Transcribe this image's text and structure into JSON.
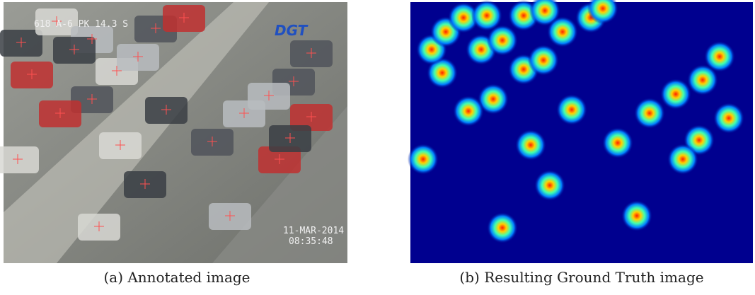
{
  "figure": {
    "left": {
      "overlay_top": "618 A-6 PK 14.3 S",
      "logo": "DGT",
      "date": "11-MAR-2014",
      "time": "08:35:48",
      "caption": "(a) Annotated image"
    },
    "right": {
      "caption": "(b) Resulting Ground Truth image"
    }
  }
}
